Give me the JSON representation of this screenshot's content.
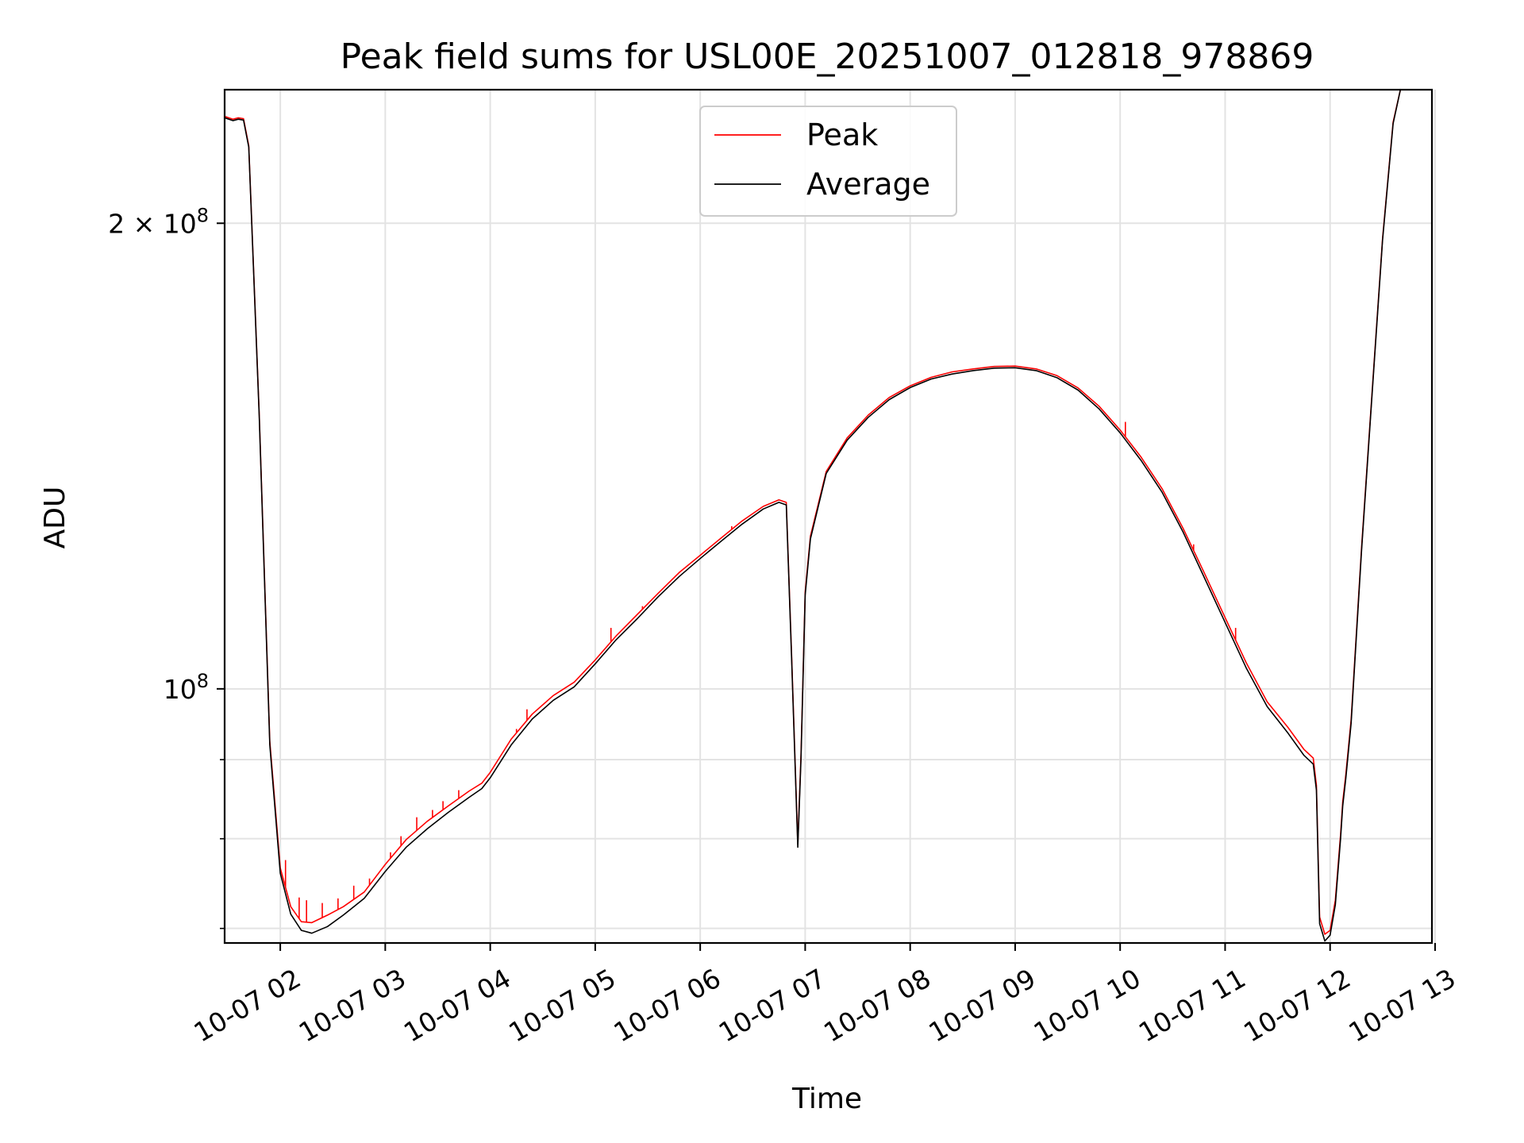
{
  "chart_data": {
    "type": "line",
    "title": "Peak field sums for USL00E_20251007_012818_978869",
    "xlabel": "Time",
    "ylabel": "ADU",
    "yscale": "log",
    "xlim": [
      1.47,
      12.97
    ],
    "ylim": [
      68500000,
      244000000
    ],
    "x_unit": "hours since 10-07 00:00",
    "x_ticks": [
      {
        "value": 2,
        "label": "10-07 02"
      },
      {
        "value": 3,
        "label": "10-07 03"
      },
      {
        "value": 4,
        "label": "10-07 04"
      },
      {
        "value": 5,
        "label": "10-07 05"
      },
      {
        "value": 6,
        "label": "10-07 06"
      },
      {
        "value": 7,
        "label": "10-07 07"
      },
      {
        "value": 8,
        "label": "10-07 08"
      },
      {
        "value": 9,
        "label": "10-07 09"
      },
      {
        "value": 10,
        "label": "10-07 10"
      },
      {
        "value": 11,
        "label": "10-07 11"
      },
      {
        "value": 12,
        "label": "10-07 12"
      },
      {
        "value": 13,
        "label": "10-07 13"
      }
    ],
    "y_major_ticks": [
      {
        "value": 100000000,
        "base": "10",
        "exp": "8",
        "prefix": ""
      },
      {
        "value": 200000000,
        "base": "10",
        "exp": "8",
        "prefix": "2 × "
      }
    ],
    "y_minor_ticks": [
      70000000,
      80000000,
      90000000
    ],
    "grid": true,
    "legend": {
      "position": "upper center",
      "entries": [
        "Peak",
        "Average"
      ]
    },
    "series": [
      {
        "name": "Average",
        "color": "#000000",
        "points": [
          [
            1.47,
            234000000
          ],
          [
            1.55,
            233000000
          ],
          [
            1.6,
            233500000
          ],
          [
            1.65,
            233200000
          ],
          [
            1.7,
            224000000
          ],
          [
            1.8,
            150000000
          ],
          [
            1.9,
            92000000
          ],
          [
            2.0,
            76000000
          ],
          [
            2.1,
            71500000
          ],
          [
            2.2,
            69800000
          ],
          [
            2.3,
            69500000
          ],
          [
            2.45,
            70200000
          ],
          [
            2.6,
            71400000
          ],
          [
            2.8,
            73200000
          ],
          [
            3.0,
            76200000
          ],
          [
            3.2,
            79000000
          ],
          [
            3.4,
            81200000
          ],
          [
            3.6,
            83200000
          ],
          [
            3.8,
            85100000
          ],
          [
            3.92,
            86200000
          ],
          [
            4.0,
            87600000
          ],
          [
            4.2,
            92000000
          ],
          [
            4.4,
            95600000
          ],
          [
            4.6,
            98300000
          ],
          [
            4.8,
            100300000
          ],
          [
            5.0,
            103800000
          ],
          [
            5.2,
            107600000
          ],
          [
            5.4,
            111000000
          ],
          [
            5.6,
            114700000
          ],
          [
            5.8,
            118200000
          ],
          [
            6.0,
            121400000
          ],
          [
            6.2,
            124600000
          ],
          [
            6.4,
            127800000
          ],
          [
            6.6,
            130700000
          ],
          [
            6.75,
            132000000
          ],
          [
            6.82,
            131500000
          ],
          [
            6.87,
            105000000
          ],
          [
            6.93,
            79000000
          ],
          [
            6.96,
            90000000
          ],
          [
            7.0,
            115000000
          ],
          [
            7.05,
            125000000
          ],
          [
            7.2,
            137800000
          ],
          [
            7.4,
            144800000
          ],
          [
            7.6,
            149800000
          ],
          [
            7.8,
            153800000
          ],
          [
            8.0,
            156600000
          ],
          [
            8.2,
            158600000
          ],
          [
            8.4,
            159800000
          ],
          [
            8.6,
            160600000
          ],
          [
            8.8,
            161200000
          ],
          [
            9.0,
            161300000
          ],
          [
            9.2,
            160600000
          ],
          [
            9.4,
            158900000
          ],
          [
            9.6,
            156000000
          ],
          [
            9.8,
            151700000
          ],
          [
            10.0,
            146400000
          ],
          [
            10.2,
            140500000
          ],
          [
            10.4,
            134000000
          ],
          [
            10.6,
            126300000
          ],
          [
            10.8,
            118100000
          ],
          [
            11.0,
            110400000
          ],
          [
            11.2,
            103200000
          ],
          [
            11.4,
            97400000
          ],
          [
            11.6,
            93600000
          ],
          [
            11.75,
            90600000
          ],
          [
            11.84,
            89400000
          ],
          [
            11.87,
            86000000
          ],
          [
            11.9,
            70500000
          ],
          [
            11.95,
            68700000
          ],
          [
            12.0,
            69300000
          ],
          [
            12.05,
            72500000
          ],
          [
            12.1,
            80000000
          ],
          [
            12.12,
            84000000
          ],
          [
            12.15,
            87500000
          ],
          [
            12.2,
            95000000
          ],
          [
            12.3,
            123000000
          ],
          [
            12.4,
            155000000
          ],
          [
            12.5,
            195000000
          ],
          [
            12.6,
            232000000
          ],
          [
            12.67,
            244000000
          ]
        ]
      },
      {
        "name": "Peak",
        "color": "#ff0000",
        "points": [
          [
            1.47,
            234500000
          ],
          [
            1.55,
            233500000
          ],
          [
            1.6,
            234000000
          ],
          [
            1.65,
            233700000
          ],
          [
            1.7,
            224500000
          ],
          [
            1.8,
            150500000
          ],
          [
            1.9,
            92500000
          ],
          [
            2.0,
            76600000
          ],
          [
            2.1,
            72300000
          ],
          [
            2.2,
            70700000
          ],
          [
            2.3,
            70600000
          ],
          [
            2.45,
            71400000
          ],
          [
            2.6,
            72300000
          ],
          [
            2.8,
            73900000
          ],
          [
            3.0,
            77000000
          ],
          [
            3.2,
            79900000
          ],
          [
            3.4,
            82100000
          ],
          [
            3.6,
            84000000
          ],
          [
            3.8,
            85900000
          ],
          [
            3.92,
            86900000
          ],
          [
            4.0,
            88300000
          ],
          [
            4.2,
            92800000
          ],
          [
            4.4,
            96300000
          ],
          [
            4.6,
            99000000
          ],
          [
            4.8,
            101000000
          ],
          [
            5.0,
            104400000
          ],
          [
            5.2,
            108200000
          ],
          [
            5.4,
            111700000
          ],
          [
            5.6,
            115300000
          ],
          [
            5.8,
            118900000
          ],
          [
            6.0,
            122000000
          ],
          [
            6.2,
            125200000
          ],
          [
            6.4,
            128400000
          ],
          [
            6.6,
            131200000
          ],
          [
            6.75,
            132500000
          ],
          [
            6.82,
            132000000
          ],
          [
            6.87,
            105500000
          ],
          [
            6.93,
            79400000
          ],
          [
            6.96,
            90500000
          ],
          [
            7.0,
            115500000
          ],
          [
            7.05,
            125500000
          ],
          [
            7.2,
            138200000
          ],
          [
            7.4,
            145300000
          ],
          [
            7.6,
            150300000
          ],
          [
            7.8,
            154300000
          ],
          [
            8.0,
            157000000
          ],
          [
            8.2,
            159000000
          ],
          [
            8.4,
            160300000
          ],
          [
            8.6,
            161000000
          ],
          [
            8.8,
            161600000
          ],
          [
            9.0,
            161700000
          ],
          [
            9.2,
            161000000
          ],
          [
            9.4,
            159400000
          ],
          [
            9.6,
            156500000
          ],
          [
            9.8,
            152300000
          ],
          [
            10.0,
            147000000
          ],
          [
            10.2,
            141200000
          ],
          [
            10.4,
            134700000
          ],
          [
            10.6,
            127000000
          ],
          [
            10.8,
            118900000
          ],
          [
            11.0,
            111200000
          ],
          [
            11.2,
            104000000
          ],
          [
            11.4,
            98100000
          ],
          [
            11.6,
            94400000
          ],
          [
            11.75,
            91400000
          ],
          [
            11.84,
            90200000
          ],
          [
            11.87,
            86600000
          ],
          [
            11.9,
            71200000
          ],
          [
            11.95,
            69400000
          ],
          [
            12.0,
            69800000
          ],
          [
            12.05,
            73000000
          ],
          [
            12.1,
            80500000
          ],
          [
            12.12,
            84500000
          ],
          [
            12.15,
            88000000
          ],
          [
            12.2,
            95500000
          ],
          [
            12.3,
            123500000
          ],
          [
            12.4,
            155500000
          ],
          [
            12.5,
            195500000
          ],
          [
            12.6,
            232500000
          ],
          [
            12.67,
            244000000
          ]
        ],
        "spikes": [
          [
            2.05,
            77500000
          ],
          [
            2.18,
            73300000
          ],
          [
            2.25,
            73000000
          ],
          [
            2.4,
            72700000
          ],
          [
            2.55,
            73200000
          ],
          [
            2.7,
            74600000
          ],
          [
            2.85,
            75400000
          ],
          [
            3.05,
            78400000
          ],
          [
            3.15,
            80300000
          ],
          [
            3.3,
            82600000
          ],
          [
            3.45,
            83500000
          ],
          [
            3.55,
            84600000
          ],
          [
            3.7,
            86000000
          ],
          [
            4.25,
            94200000
          ],
          [
            4.35,
            97000000
          ],
          [
            5.15,
            109500000
          ],
          [
            5.45,
            113100000
          ],
          [
            6.3,
            127400000
          ],
          [
            10.05,
            148800000
          ],
          [
            10.7,
            124000000
          ],
          [
            11.1,
            109500000
          ]
        ]
      }
    ]
  }
}
